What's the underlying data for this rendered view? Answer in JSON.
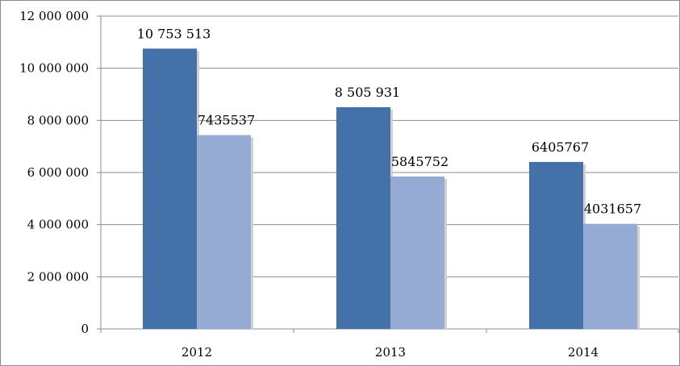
{
  "chart_data": {
    "type": "bar",
    "title": "",
    "xlabel": "",
    "ylabel": "",
    "categories": [
      "2012",
      "2013",
      "2014"
    ],
    "series": [
      {
        "color": "#4472a8",
        "values": [
          10753513,
          8505931,
          6405767
        ],
        "data_labels": [
          "10 753 513",
          "8 505 931",
          "6405767"
        ]
      },
      {
        "color": "#95abd4",
        "values": [
          7435537,
          5845752,
          4031657
        ],
        "data_labels": [
          "7435537",
          "5845752",
          "4031657"
        ]
      }
    ],
    "ylim": [
      0,
      12000000
    ],
    "yticks": [
      0,
      2000000,
      4000000,
      6000000,
      8000000,
      10000000,
      12000000
    ],
    "ytick_labels": [
      "0",
      "2 000 000",
      "4 000 000",
      "6 000 000",
      "8 000 000",
      "10 000 000",
      "12 000 000"
    ],
    "grid": true,
    "legend": "none"
  }
}
